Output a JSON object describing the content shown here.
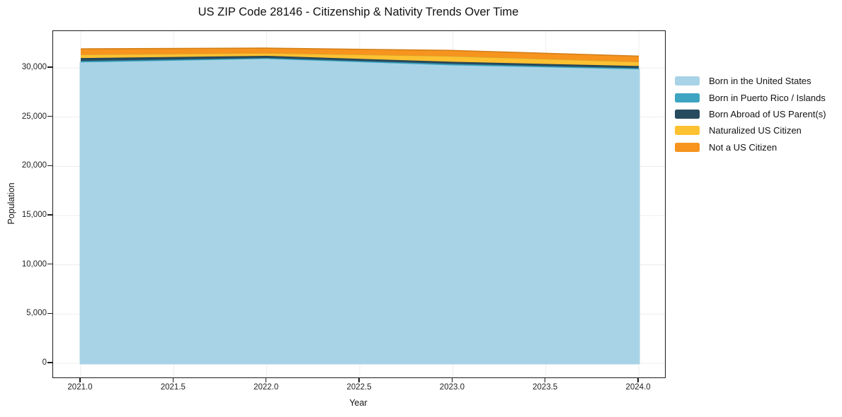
{
  "title": "US ZIP Code 28146 - Citizenship & Nativity Trends Over Time",
  "chart_data": {
    "type": "area",
    "stacked": true,
    "title": "US ZIP Code 28146 - Citizenship & Nativity Trends Over Time",
    "xlabel": "Year",
    "ylabel": "Population",
    "x": [
      2021,
      2022,
      2023,
      2024
    ],
    "series": [
      {
        "name": "Born in the United States",
        "color": "#a8d3e6",
        "values": [
          30550,
          30900,
          30250,
          29850
        ]
      },
      {
        "name": "Born in Puerto Rico / Islands",
        "color": "#3da4c1",
        "values": [
          150,
          100,
          150,
          120
        ]
      },
      {
        "name": "Born Abroad of US Parent(s)",
        "color": "#264a5e",
        "values": [
          290,
          215,
          215,
          215
        ]
      },
      {
        "name": "Naturalized US Citizen",
        "color": "#fdc132",
        "values": [
          360,
          285,
          575,
          430
        ]
      },
      {
        "name": "Not a US Citizen",
        "color": "#f6941e",
        "values": [
          575,
          500,
          575,
          575
        ]
      }
    ],
    "xlim": [
      2020.8515,
      2024.1405
    ],
    "ylim": [
      -1435,
      33730
    ],
    "x_tick_values": [
      2021.0,
      2021.5,
      2022.0,
      2022.5,
      2023.0,
      2023.5,
      2024.0
    ],
    "x_ticks": [
      "2021.0",
      "2021.5",
      "2022.0",
      "2022.5",
      "2023.0",
      "2023.5",
      "2024.0"
    ],
    "y_tick_values": [
      0,
      5000,
      10000,
      15000,
      20000,
      25000,
      30000
    ],
    "y_ticks": [
      "0",
      "5,000",
      "10,000",
      "15,000",
      "20,000",
      "25,000",
      "30,000"
    ],
    "grid": true,
    "grid_color": "#ededed",
    "axis_color": "#1c1c1c",
    "legend_position": "right"
  }
}
